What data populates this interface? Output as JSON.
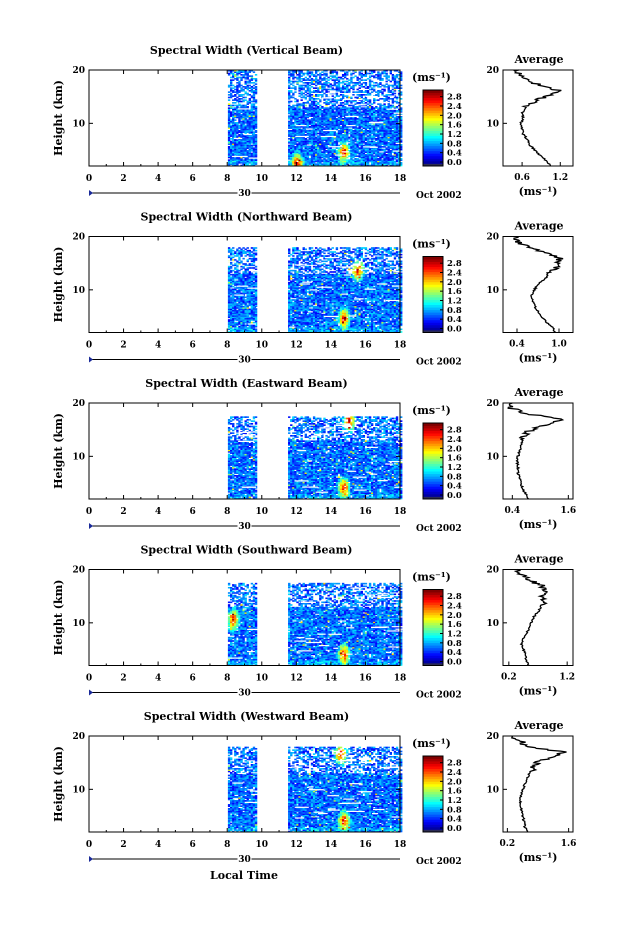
{
  "figure": {
    "xlabel": "Local Time",
    "date_label": "Oct 2002",
    "day_label": "30",
    "unit_label": "(ms⁻¹)",
    "avg_title": "Average"
  },
  "chart_data": [
    {
      "type": "heatmap",
      "title": "Spectral Width (Vertical Beam)",
      "xlabel": "",
      "ylabel": "Height (km)",
      "xlim": [
        0,
        18
      ],
      "ylim": [
        2,
        20
      ],
      "xticks": [
        "0",
        "2",
        "4",
        "6",
        "8",
        "10",
        "12",
        "14",
        "16",
        "18"
      ],
      "yticks": [
        "10",
        "20"
      ],
      "colorbar": {
        "label": "(ms⁻¹)",
        "range": [
          0.0,
          3.0
        ],
        "ticks": [
          "0.0",
          "0.4",
          "0.8",
          "1.2",
          "1.6",
          "2.0",
          "2.4",
          "2.8"
        ]
      },
      "data_gaps": [
        [
          0,
          8
        ],
        [
          9.7,
          11.5
        ]
      ],
      "hotspots": [
        {
          "time": 14.7,
          "height": 4.5
        },
        {
          "time": 12.0,
          "height": 2.5
        }
      ],
      "top_km": 20,
      "average": {
        "title": "Average",
        "xlim": [
          0.3,
          1.4
        ],
        "xticks": [
          "0.6",
          "1.2"
        ],
        "xlabel": "(ms⁻¹)",
        "height": [
          2,
          3,
          4,
          5,
          6,
          7,
          8,
          9,
          10,
          11,
          12,
          13,
          14,
          15,
          16,
          17,
          18,
          19,
          20
        ],
        "value": [
          1.05,
          0.98,
          0.88,
          0.8,
          0.72,
          0.68,
          0.62,
          0.6,
          0.58,
          0.62,
          0.6,
          0.66,
          0.78,
          0.95,
          1.2,
          0.9,
          0.7,
          0.55,
          0.55
        ]
      }
    },
    {
      "type": "heatmap",
      "title": "Spectral Width (Northward Beam)",
      "xlabel": "",
      "ylabel": "Height (km)",
      "xlim": [
        0,
        18
      ],
      "ylim": [
        2,
        20
      ],
      "xticks": [
        "0",
        "2",
        "4",
        "6",
        "8",
        "10",
        "12",
        "14",
        "16",
        "18"
      ],
      "yticks": [
        "10",
        "20"
      ],
      "colorbar": {
        "label": "(ms⁻¹)",
        "range": [
          0.0,
          3.0
        ],
        "ticks": [
          "0.0",
          "0.4",
          "0.8",
          "1.2",
          "1.6",
          "2.0",
          "2.4",
          "2.8"
        ]
      },
      "data_gaps": [
        [
          0,
          8
        ],
        [
          9.7,
          11.5
        ]
      ],
      "hotspots": [
        {
          "time": 14.7,
          "height": 4.5
        },
        {
          "time": 15.5,
          "height": 13.5
        }
      ],
      "top_km": 18,
      "average": {
        "title": "Average",
        "xlim": [
          0.2,
          1.2
        ],
        "xticks": [
          "0.4",
          "1.0"
        ],
        "xlabel": "(ms⁻¹)",
        "height": [
          2,
          3,
          4,
          5,
          6,
          7,
          8,
          9,
          10,
          11,
          12,
          13,
          14,
          15,
          16,
          17,
          18,
          19,
          20
        ],
        "value": [
          0.95,
          0.9,
          0.82,
          0.75,
          0.7,
          0.65,
          0.62,
          0.6,
          0.65,
          0.7,
          0.8,
          0.85,
          0.95,
          1.0,
          1.0,
          0.8,
          0.55,
          0.4,
          0.4
        ]
      }
    },
    {
      "type": "heatmap",
      "title": "Spectral Width (Eastward Beam)",
      "xlabel": "",
      "ylabel": "Height (km)",
      "xlim": [
        0,
        18
      ],
      "ylim": [
        2,
        20
      ],
      "xticks": [
        "0",
        "2",
        "4",
        "6",
        "8",
        "10",
        "12",
        "14",
        "16",
        "18"
      ],
      "yticks": [
        "10",
        "20"
      ],
      "colorbar": {
        "label": "(ms⁻¹)",
        "range": [
          0.0,
          3.0
        ],
        "ticks": [
          "0.0",
          "0.4",
          "0.8",
          "1.2",
          "1.6",
          "2.0",
          "2.4",
          "2.8"
        ]
      },
      "data_gaps": [
        [
          0,
          8
        ],
        [
          9.7,
          11.5
        ]
      ],
      "hotspots": [
        {
          "time": 14.7,
          "height": 4.0
        },
        {
          "time": 15.0,
          "height": 16.5
        }
      ],
      "top_km": 17.5,
      "average": {
        "title": "Average",
        "xlim": [
          0.2,
          1.7
        ],
        "xticks": [
          "0.4",
          "1.6"
        ],
        "xlabel": "(ms⁻¹)",
        "height": [
          2,
          3,
          4,
          5,
          6,
          7,
          8,
          9,
          10,
          11,
          12,
          13,
          14,
          15,
          16,
          17,
          18,
          19,
          20
        ],
        "value": [
          0.75,
          0.68,
          0.62,
          0.58,
          0.55,
          0.52,
          0.52,
          0.5,
          0.52,
          0.56,
          0.58,
          0.62,
          0.68,
          0.8,
          1.2,
          1.5,
          0.7,
          0.4,
          0.4
        ]
      }
    },
    {
      "type": "heatmap",
      "title": "Spectral Width (Southward Beam)",
      "xlabel": "",
      "ylabel": "Height (km)",
      "xlim": [
        0,
        18
      ],
      "ylim": [
        2,
        20
      ],
      "xticks": [
        "0",
        "2",
        "4",
        "6",
        "8",
        "10",
        "12",
        "14",
        "16",
        "18"
      ],
      "yticks": [
        "10",
        "20"
      ],
      "colorbar": {
        "label": "(ms⁻¹)",
        "range": [
          0.0,
          3.0
        ],
        "ticks": [
          "0.0",
          "0.4",
          "0.8",
          "1.2",
          "1.6",
          "2.0",
          "2.4",
          "2.8"
        ]
      },
      "data_gaps": [
        [
          0,
          8
        ],
        [
          9.7,
          11.5
        ]
      ],
      "hotspots": [
        {
          "time": 14.7,
          "height": 4.0
        },
        {
          "time": 8.3,
          "height": 10.5
        }
      ],
      "top_km": 17.5,
      "average": {
        "title": "Average",
        "xlim": [
          0.1,
          1.3
        ],
        "xticks": [
          "0.2",
          "1.2"
        ],
        "xlabel": "(ms⁻¹)",
        "height": [
          2,
          3,
          4,
          5,
          6,
          7,
          8,
          9,
          10,
          11,
          12,
          13,
          14,
          15,
          16,
          17,
          18,
          19,
          20
        ],
        "value": [
          0.55,
          0.5,
          0.48,
          0.45,
          0.42,
          0.45,
          0.5,
          0.55,
          0.58,
          0.62,
          0.7,
          0.75,
          0.78,
          0.8,
          0.78,
          0.75,
          0.55,
          0.4,
          0.35
        ]
      }
    },
    {
      "type": "heatmap",
      "title": "Spectral Width (Westward Beam)",
      "xlabel": "Local Time",
      "ylabel": "Height (km)",
      "xlim": [
        0,
        18
      ],
      "ylim": [
        2,
        20
      ],
      "xticks": [
        "0",
        "2",
        "4",
        "6",
        "8",
        "10",
        "12",
        "14",
        "16",
        "18"
      ],
      "yticks": [
        "10",
        "20"
      ],
      "colorbar": {
        "label": "(ms⁻¹)",
        "range": [
          0.0,
          3.0
        ],
        "ticks": [
          "0.0",
          "0.4",
          "0.8",
          "1.2",
          "1.6",
          "2.0",
          "2.4",
          "2.8"
        ]
      },
      "data_gaps": [
        [
          0,
          8
        ],
        [
          9.7,
          11.5
        ]
      ],
      "hotspots": [
        {
          "time": 14.7,
          "height": 4.0
        },
        {
          "time": 14.5,
          "height": 16.5
        }
      ],
      "top_km": 18,
      "average": {
        "title": "Average",
        "xlim": [
          0.1,
          1.7
        ],
        "xticks": [
          "0.2",
          "1.6"
        ],
        "xlabel": "(ms⁻¹)",
        "height": [
          2,
          3,
          4,
          5,
          6,
          7,
          8,
          9,
          10,
          11,
          12,
          13,
          14,
          15,
          16,
          17,
          18,
          19,
          20
        ],
        "value": [
          0.65,
          0.6,
          0.58,
          0.55,
          0.52,
          0.5,
          0.5,
          0.52,
          0.55,
          0.6,
          0.65,
          0.7,
          0.8,
          0.85,
          1.2,
          1.5,
          0.65,
          0.5,
          0.3
        ]
      }
    }
  ]
}
